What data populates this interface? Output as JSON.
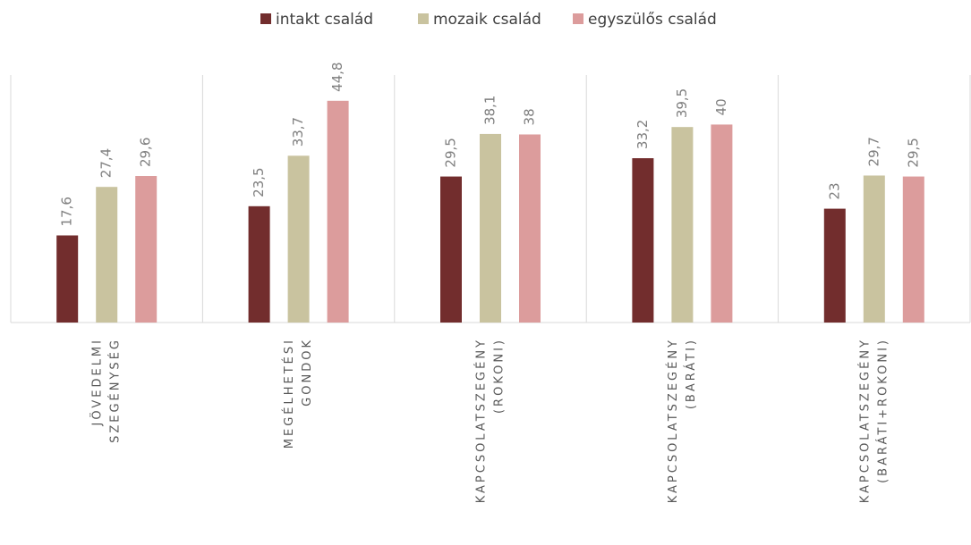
{
  "chart_data": {
    "type": "bar",
    "categories": [
      [
        "JÖVEDELMI",
        "SZEGÉNYSÉG"
      ],
      [
        "MEGÉLHETÉSI",
        "GONDOK"
      ],
      [
        "KAPCSOLATSZEGÉNY",
        "(ROKONI)"
      ],
      [
        "KAPCSOLATSZEGÉNY",
        "(BARÁTI)"
      ],
      [
        "KAPCSOLATSZEGÉNY",
        "(BARÁTI+ROKONI)"
      ]
    ],
    "series": [
      {
        "name": "intakt család",
        "color": "#722d2d",
        "values": [
          17.6,
          23.5,
          29.5,
          33.2,
          23
        ],
        "value_labels": [
          "17,6",
          "23,5",
          "29,5",
          "33,2",
          "23"
        ]
      },
      {
        "name": "mozaik család",
        "color": "#c9c39f",
        "values": [
          27.4,
          33.7,
          38.1,
          39.5,
          29.7
        ],
        "value_labels": [
          "27,4",
          "33,7",
          "38,1",
          "39,5",
          "29,7"
        ]
      },
      {
        "name": "egyszülős család",
        "color": "#dc9c9c",
        "values": [
          29.6,
          44.8,
          38,
          40,
          29.5
        ],
        "value_labels": [
          "29,6",
          "44,8",
          "38",
          "40",
          "29,5"
        ]
      }
    ],
    "ylim": [
      0,
      50
    ],
    "legend": "top"
  }
}
